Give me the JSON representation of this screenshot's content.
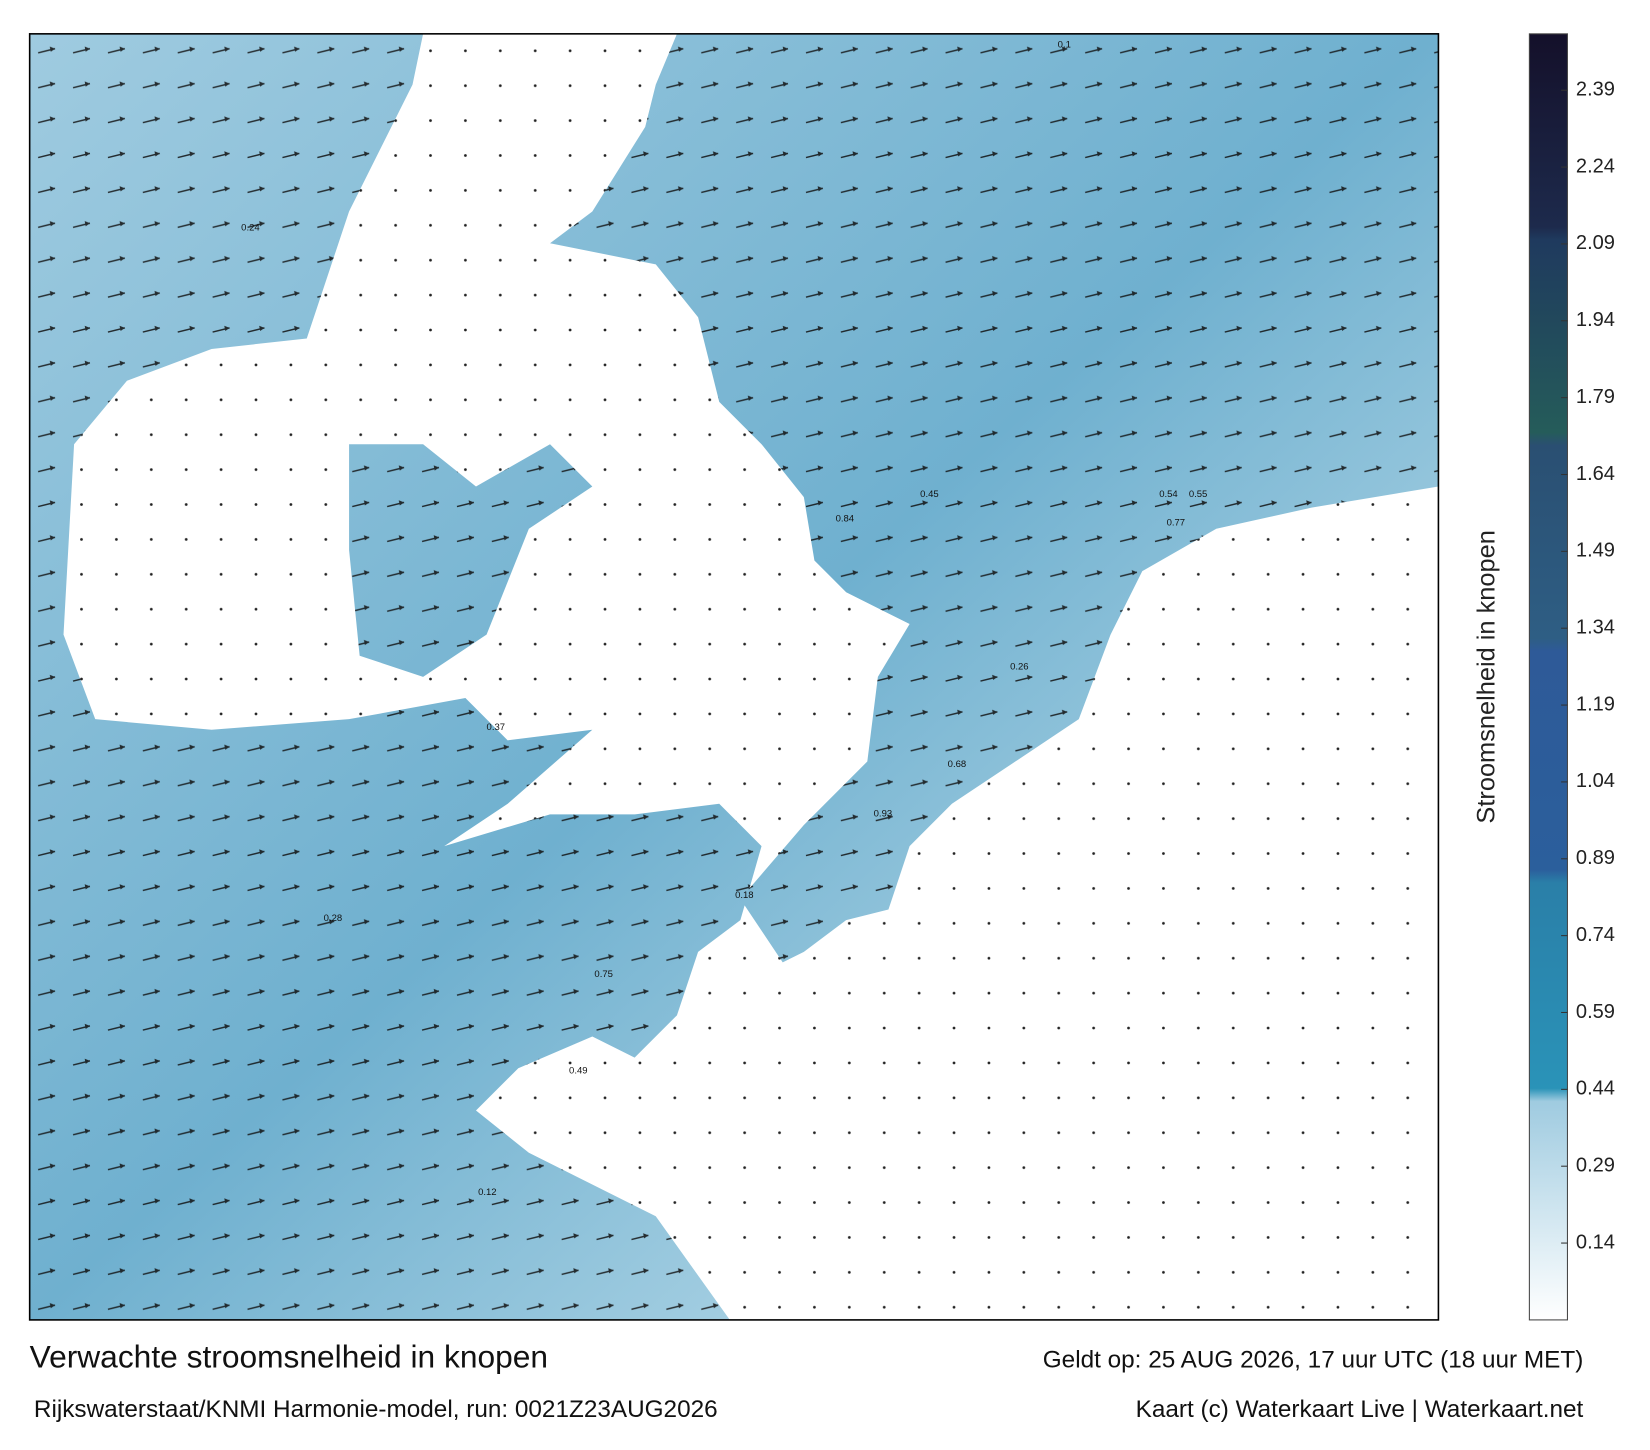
{
  "header": {
    "title": "Verwachte stroomsnelheid in knopen",
    "subtitle": "Rijkswaterstaat/KNMI Harmonie-model, run: 0021Z23AUG2026",
    "valid": "Geldt op: 25 AUG 2026, 17 uur UTC (18 uur MET)",
    "credit": "Kaart (c) Waterkaart Live | Waterkaart.net"
  },
  "colorbar": {
    "label": "Stroomsnelheid in knopen",
    "lim": [
      -0.01,
      2.5
    ],
    "ticks": [
      0.14,
      0.29,
      0.44,
      0.59,
      0.74,
      0.89,
      1.04,
      1.19,
      1.34,
      1.49,
      1.64,
      1.79,
      1.94,
      2.09,
      2.24,
      2.39
    ]
  },
  "map_labels": [
    0.84,
    0.77,
    0.93,
    0.75,
    0.68,
    0.54,
    0.49,
    0.45,
    0.26,
    0.18,
    0.12,
    0.1,
    0.24,
    0.37,
    0.55,
    0.28
  ]
}
